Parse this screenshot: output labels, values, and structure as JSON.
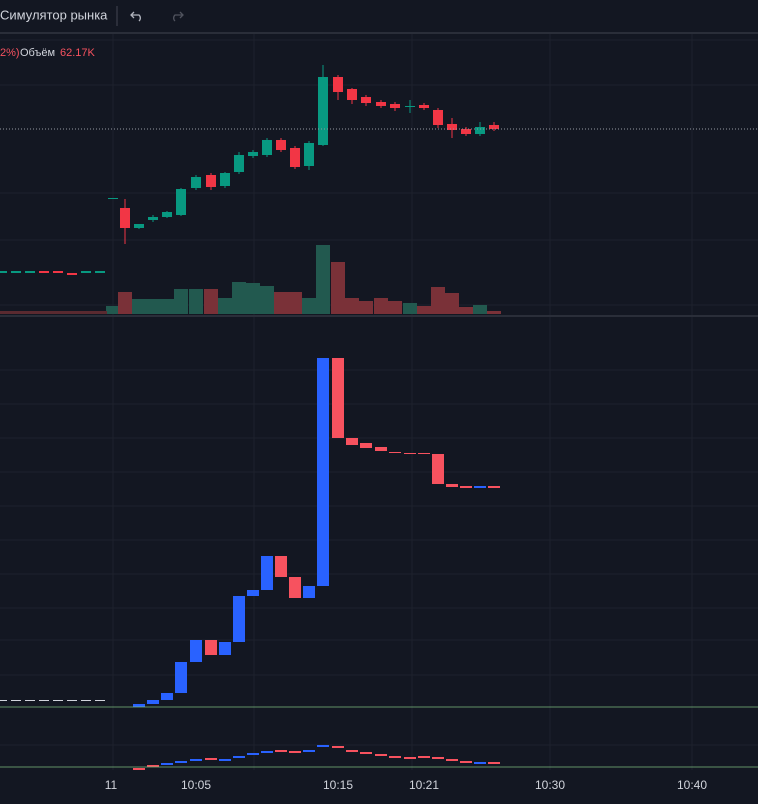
{
  "toolbar": {
    "title": "Симулятор рынка"
  },
  "legend": {
    "change": "2%)",
    "volume_label": "Объём",
    "volume_value": "62.17K"
  },
  "time_axis": {
    "labels": [
      "11",
      "10:05",
      "10:15",
      "10:21",
      "10:30",
      "10:40"
    ]
  }
}
